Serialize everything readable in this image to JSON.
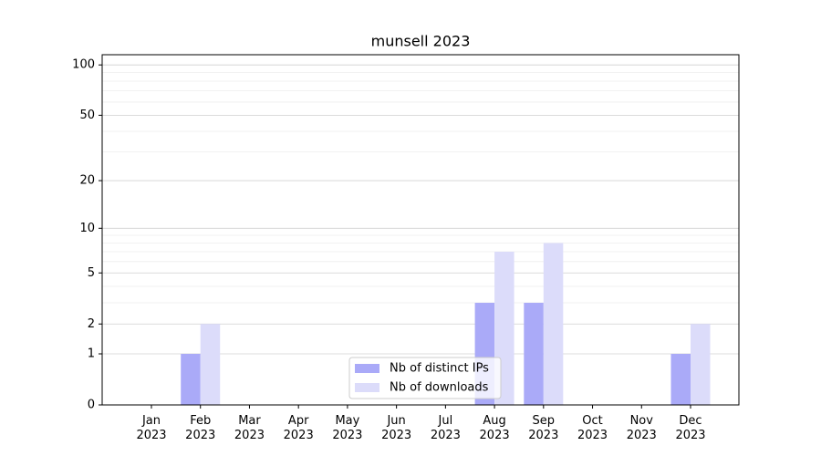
{
  "chart_data": {
    "type": "bar",
    "title": "munsell 2023",
    "categories": [
      "Jan 2023",
      "Feb 2023",
      "Mar 2023",
      "Apr 2023",
      "May 2023",
      "Jun 2023",
      "Jul 2023",
      "Aug 2023",
      "Sep 2023",
      "Oct 2023",
      "Nov 2023",
      "Dec 2023"
    ],
    "series": [
      {
        "name": "Nb of distinct IPs",
        "color": "#aaaaf8",
        "values": [
          0,
          1,
          0,
          0,
          0,
          0,
          0,
          3,
          3,
          0,
          0,
          1
        ]
      },
      {
        "name": "Nb of downloads",
        "color": "#dcdcfa",
        "values": [
          0,
          2,
          0,
          0,
          0,
          0,
          0,
          7,
          8,
          0,
          0,
          2
        ]
      }
    ],
    "yscale": "log1p",
    "ylim": [
      0,
      115
    ],
    "yticks": [
      0,
      1,
      2,
      5,
      10,
      20,
      50,
      100
    ],
    "minor_yticks": [
      3,
      4,
      6,
      7,
      8,
      9,
      30,
      40,
      60,
      70,
      80,
      90
    ],
    "grid": true,
    "legend": "lower center"
  }
}
